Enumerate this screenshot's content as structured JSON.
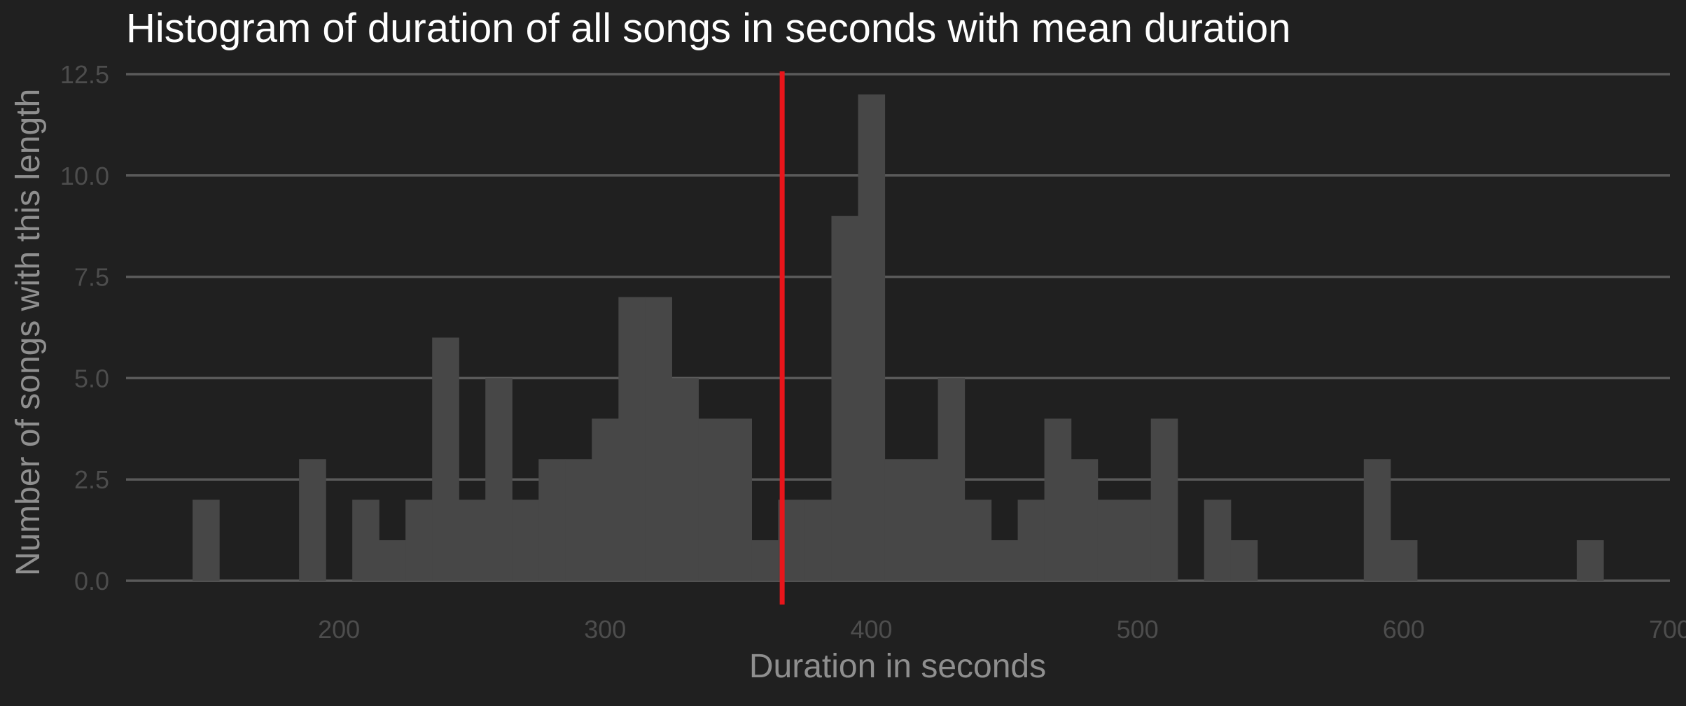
{
  "chart_data": {
    "type": "bar",
    "title": "Histogram of duration of all songs in seconds with mean duration",
    "xlabel": "Duration in seconds",
    "ylabel": "Number of songs with this length",
    "xlim": [
      120,
      700
    ],
    "ylim": [
      0,
      12.5
    ],
    "x_ticks": [
      200,
      300,
      400,
      500,
      600,
      700
    ],
    "y_ticks": [
      0,
      2.5,
      5,
      7.5,
      10,
      12.5
    ],
    "y_tick_labels": [
      "0.0",
      "2.5",
      "5.0",
      "7.5",
      "10.0",
      "12.5"
    ],
    "grid": "horizontal",
    "mean_line": {
      "x": 366.5,
      "color": "#e8151b"
    },
    "bins": [
      {
        "x0": 145,
        "x1": 155,
        "count": 2
      },
      {
        "x0": 185,
        "x1": 195,
        "count": 3
      },
      {
        "x0": 205,
        "x1": 215,
        "count": 2
      },
      {
        "x0": 215,
        "x1": 225,
        "count": 1
      },
      {
        "x0": 225,
        "x1": 235,
        "count": 2
      },
      {
        "x0": 235,
        "x1": 245,
        "count": 6
      },
      {
        "x0": 245,
        "x1": 255,
        "count": 2
      },
      {
        "x0": 255,
        "x1": 265,
        "count": 5
      },
      {
        "x0": 265,
        "x1": 275,
        "count": 2
      },
      {
        "x0": 275,
        "x1": 285,
        "count": 3
      },
      {
        "x0": 285,
        "x1": 295,
        "count": 3
      },
      {
        "x0": 295,
        "x1": 305,
        "count": 4
      },
      {
        "x0": 305,
        "x1": 315,
        "count": 7
      },
      {
        "x0": 315,
        "x1": 325,
        "count": 7
      },
      {
        "x0": 325,
        "x1": 335,
        "count": 5
      },
      {
        "x0": 335,
        "x1": 345,
        "count": 4
      },
      {
        "x0": 345,
        "x1": 355,
        "count": 4
      },
      {
        "x0": 355,
        "x1": 365,
        "count": 1
      },
      {
        "x0": 365,
        "x1": 375,
        "count": 2
      },
      {
        "x0": 375,
        "x1": 385,
        "count": 2
      },
      {
        "x0": 385,
        "x1": 395,
        "count": 9
      },
      {
        "x0": 395,
        "x1": 405,
        "count": 12
      },
      {
        "x0": 405,
        "x1": 415,
        "count": 3
      },
      {
        "x0": 415,
        "x1": 425,
        "count": 3
      },
      {
        "x0": 425,
        "x1": 435,
        "count": 5
      },
      {
        "x0": 435,
        "x1": 445,
        "count": 2
      },
      {
        "x0": 445,
        "x1": 455,
        "count": 1
      },
      {
        "x0": 455,
        "x1": 465,
        "count": 2
      },
      {
        "x0": 465,
        "x1": 475,
        "count": 4
      },
      {
        "x0": 475,
        "x1": 485,
        "count": 3
      },
      {
        "x0": 485,
        "x1": 495,
        "count": 2
      },
      {
        "x0": 495,
        "x1": 505,
        "count": 2
      },
      {
        "x0": 505,
        "x1": 515,
        "count": 4
      },
      {
        "x0": 525,
        "x1": 535,
        "count": 2
      },
      {
        "x0": 535,
        "x1": 545,
        "count": 1
      },
      {
        "x0": 585,
        "x1": 595,
        "count": 3
      },
      {
        "x0": 595,
        "x1": 605,
        "count": 1
      },
      {
        "x0": 665,
        "x1": 675,
        "count": 1
      }
    ],
    "colors": {
      "background": "#202020",
      "bar": "#474747",
      "grid": "#5a5a5a",
      "tick_label": "#4d4d4d",
      "axis_title": "#8f8f8f",
      "title": "#ffffff"
    }
  }
}
